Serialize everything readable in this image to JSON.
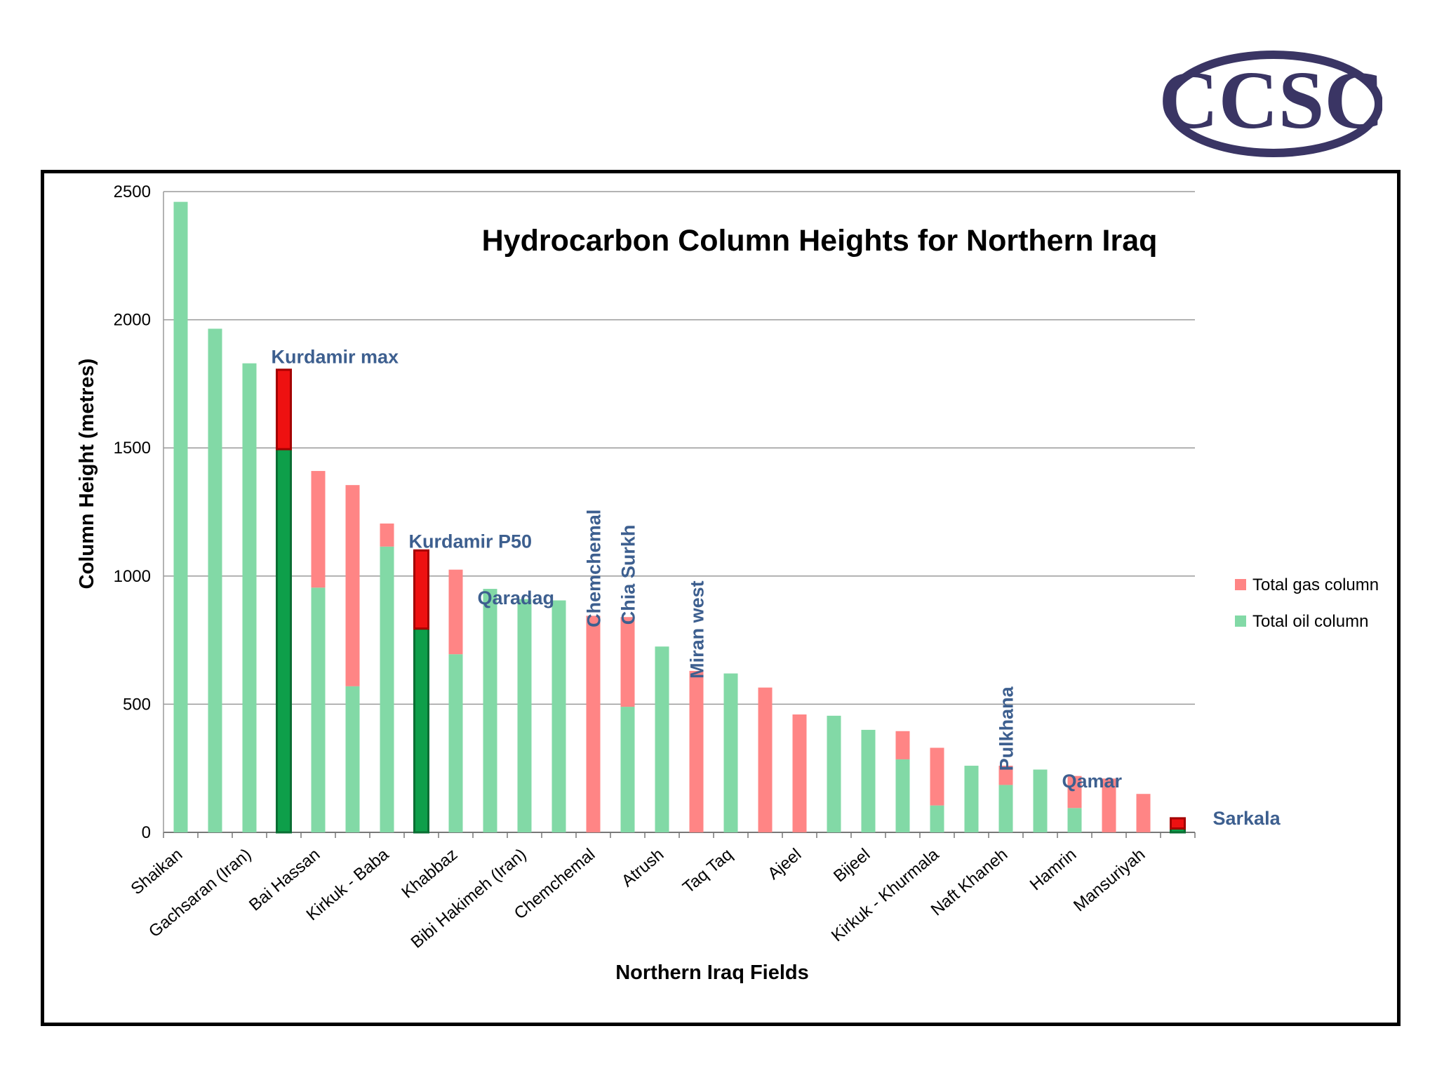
{
  "logo": {
    "text": "CCSC",
    "color": "#3a3564"
  },
  "chart_data": {
    "type": "bar",
    "stacked": true,
    "title": "Hydrocarbon Column Heights for Northern Iraq",
    "xlabel": "Northern Iraq Fields",
    "ylabel": "Column Height (metres)",
    "ylim": [
      0,
      2500
    ],
    "yticks": [
      0,
      500,
      1000,
      1500,
      2000,
      2500
    ],
    "grid": true,
    "legend_position": "right",
    "categories": [
      "Shaikan",
      "",
      "Gachsaran (Iran)",
      "",
      "Bai Hassan",
      "",
      "Kirkuk - Baba",
      "",
      "Khabbaz",
      "",
      "Bibi Hakimeh (Iran)",
      "",
      "Chemchemal",
      "",
      "Atrush",
      "",
      "Taq Taq",
      "",
      "Ajeel",
      "",
      "Bijeel",
      "",
      "Kirkuk - Khurmala",
      "",
      "Naft Khaneh",
      "",
      "Hamrin",
      "",
      "Mansuriyah",
      ""
    ],
    "series": [
      {
        "name": "Total oil column",
        "color": "#82d9a6",
        "values": [
          2460,
          1965,
          1830,
          1495,
          955,
          570,
          1115,
          795,
          695,
          950,
          910,
          905,
          0,
          490,
          725,
          0,
          620,
          0,
          0,
          455,
          400,
          285,
          105,
          260,
          185,
          245,
          95,
          0,
          0,
          15
        ]
      },
      {
        "name": "Total gas column",
        "color": "#ff8585",
        "values": [
          0,
          0,
          0,
          310,
          455,
          785,
          90,
          305,
          330,
          0,
          0,
          0,
          845,
          350,
          0,
          630,
          0,
          565,
          460,
          0,
          0,
          110,
          225,
          0,
          75,
          0,
          125,
          210,
          150,
          40
        ]
      }
    ],
    "highlight_indices": [
      3,
      7,
      29
    ],
    "highlight_colors": {
      "oil": "#0e9f4a",
      "gas": "#ee1111"
    },
    "annotations": [
      {
        "text": "Kurdamir max",
        "index": 3,
        "y": 1830,
        "rotate": false
      },
      {
        "text": "Kurdamir P50",
        "index": 7,
        "y": 1110,
        "rotate": false
      },
      {
        "text": "Qaradag",
        "index": 9,
        "y": 890,
        "rotate": false
      },
      {
        "text": "Chemchemal",
        "index": 12,
        "y": 800,
        "rotate": true
      },
      {
        "text": "Chia Surkh",
        "index": 13,
        "y": 810,
        "rotate": true
      },
      {
        "text": "Miran west",
        "index": 15,
        "y": 600,
        "rotate": true
      },
      {
        "text": "Pulkhana",
        "index": 24,
        "y": 240,
        "rotate": true
      },
      {
        "text": "Qamar",
        "index": 26,
        "y": 175,
        "rotate": false
      },
      {
        "text": "Sarkala",
        "index": 29,
        "y": 30,
        "rotate": false
      }
    ]
  }
}
